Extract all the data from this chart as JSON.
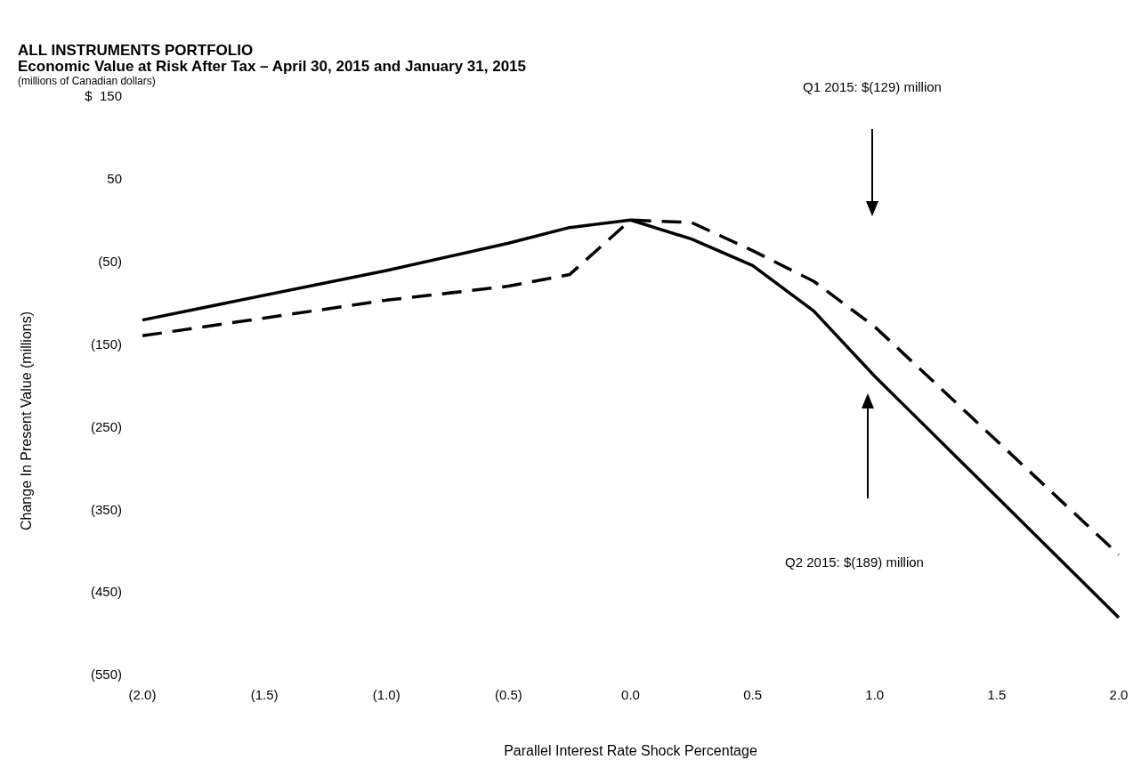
{
  "chart_data": {
    "type": "line",
    "title": "ALL INSTRUMENTS PORTFOLIO",
    "subtitle": "Economic Value at Risk After Tax – April 30, 2015 and January 31, 2015",
    "xlabel": "Parallel Interest Rate Shock Percentage",
    "ylabel": "Change In Present Value (millions)",
    "annotations": [
      "(millions of Canadian dollars)",
      "Q1 2015: $(129) million",
      "Q2 2015: $(189) million"
    ],
    "x": [
      -2,
      -1,
      -0.5,
      -0.25,
      0,
      0.25,
      0.5,
      0.75,
      1,
      1.5,
      2
    ],
    "series": [
      {
        "color": "#000000",
        "line_style": "solid",
        "values": [
          -121,
          -61,
          -28,
          -9,
          0,
          -23,
          -55,
          -110,
          -189,
          -335,
          -481
        ]
      },
      {
        "color": "#000000",
        "line_style": "dashed",
        "values": [
          -140,
          -97,
          -80,
          -66,
          0,
          -3,
          -37,
          -74,
          -129,
          -267,
          -405
        ]
      }
    ],
    "xlim": [
      -2,
      2
    ],
    "xticks": [
      {
        "value": -2,
        "label": "(2.0)"
      },
      {
        "value": -1.5,
        "label": "(1.5)"
      },
      {
        "value": -1,
        "label": "(1.0)"
      },
      {
        "value": -0.5,
        "label": "(0.5)"
      },
      {
        "value": 0,
        "label": "0.0"
      },
      {
        "value": 0.5,
        "label": "0.5"
      },
      {
        "value": 1,
        "label": "1.0"
      },
      {
        "value": 1.5,
        "label": "1.5"
      },
      {
        "value": 2,
        "label": "2.0"
      }
    ],
    "ylim": [
      -550,
      150
    ],
    "yticks": [
      {
        "value": 150,
        "label": "$  150"
      },
      50,
      {
        "value": -50,
        "label": "(50)"
      },
      {
        "value": -150,
        "label": "(150)"
      },
      {
        "value": -250,
        "label": "(250)"
      },
      {
        "value": -350,
        "label": "(350)"
      },
      {
        "value": -450,
        "label": "(450)"
      },
      {
        "value": -550,
        "label": "(550)"
      }
    ],
    "grid": false
  }
}
